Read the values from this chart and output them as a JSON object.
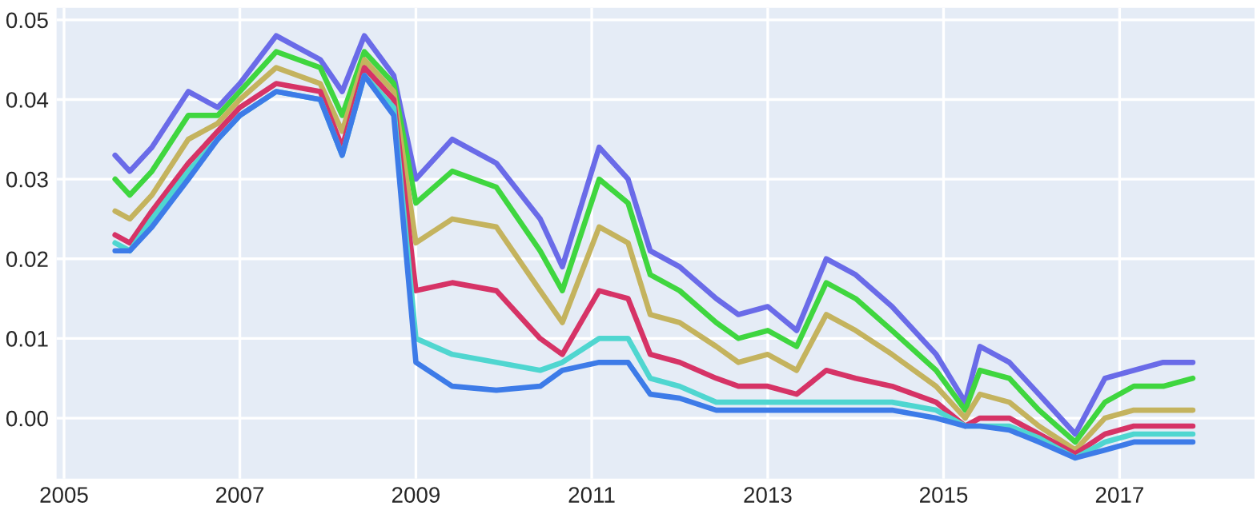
{
  "chart_data": {
    "type": "line",
    "x": [
      "2005-08-01",
      "2005-10-01",
      "2006-01-01",
      "2006-06-01",
      "2006-10-01",
      "2007-01-01",
      "2007-06-01",
      "2007-12-01",
      "2008-03-01",
      "2008-06-01",
      "2008-10-01",
      "2009-01-01",
      "2009-06-01",
      "2009-12-01",
      "2010-06-01",
      "2010-09-01",
      "2011-02-01",
      "2011-06-01",
      "2011-09-01",
      "2012-01-01",
      "2012-06-01",
      "2012-09-01",
      "2013-01-01",
      "2013-05-01",
      "2013-09-01",
      "2014-01-01",
      "2014-06-01",
      "2014-12-01",
      "2015-04-01",
      "2015-06-01",
      "2015-10-01",
      "2016-02-01",
      "2016-07-01",
      "2016-11-01",
      "2017-03-01",
      "2017-07-01",
      "2017-11-01"
    ],
    "series": [
      {
        "color": "#6a6be8",
        "values": [
          0.033,
          0.031,
          0.034,
          0.041,
          0.039,
          0.042,
          0.048,
          0.045,
          0.041,
          0.048,
          0.043,
          0.03,
          0.035,
          0.032,
          0.025,
          0.019,
          0.034,
          0.03,
          0.021,
          0.019,
          0.015,
          0.013,
          0.014,
          0.011,
          0.02,
          0.018,
          0.014,
          0.008,
          0.002,
          0.009,
          0.007,
          0.003,
          -0.002,
          0.005,
          0.006,
          0.007,
          0.007
        ]
      },
      {
        "color": "#3fd63f",
        "values": [
          0.03,
          0.028,
          0.031,
          0.038,
          0.038,
          0.041,
          0.046,
          0.044,
          0.038,
          0.046,
          0.042,
          0.027,
          0.031,
          0.029,
          0.021,
          0.016,
          0.03,
          0.027,
          0.018,
          0.016,
          0.012,
          0.01,
          0.011,
          0.009,
          0.017,
          0.015,
          0.011,
          0.006,
          0.001,
          0.006,
          0.005,
          0.001,
          -0.003,
          0.002,
          0.004,
          0.004,
          0.005
        ]
      },
      {
        "color": "#c4b35e",
        "values": [
          0.026,
          0.025,
          0.028,
          0.035,
          0.037,
          0.04,
          0.044,
          0.042,
          0.036,
          0.045,
          0.041,
          0.022,
          0.025,
          0.024,
          0.016,
          0.012,
          0.024,
          0.022,
          0.013,
          0.012,
          0.009,
          0.007,
          0.008,
          0.006,
          0.013,
          0.011,
          0.008,
          0.004,
          0.0,
          0.003,
          0.002,
          -0.001,
          -0.004,
          0.0,
          0.001,
          0.001,
          0.001
        ]
      },
      {
        "color": "#d63366",
        "values": [
          0.023,
          0.022,
          0.026,
          0.032,
          0.036,
          0.039,
          0.042,
          0.041,
          0.034,
          0.044,
          0.04,
          0.016,
          0.017,
          0.016,
          0.01,
          0.008,
          0.016,
          0.015,
          0.008,
          0.007,
          0.005,
          0.004,
          0.004,
          0.003,
          0.006,
          0.005,
          0.004,
          0.002,
          -0.001,
          0.0,
          0.0,
          -0.002,
          -0.0045,
          -0.002,
          -0.001,
          -0.001,
          -0.001
        ]
      },
      {
        "color": "#4fd6d0",
        "values": [
          0.022,
          0.021,
          0.025,
          0.031,
          0.035,
          0.038,
          0.041,
          0.04,
          0.033,
          0.043,
          0.039,
          0.01,
          0.008,
          0.007,
          0.006,
          0.007,
          0.01,
          0.01,
          0.005,
          0.004,
          0.002,
          0.002,
          0.002,
          0.002,
          0.002,
          0.002,
          0.002,
          0.001,
          -0.001,
          -0.001,
          -0.001,
          -0.0025,
          -0.005,
          -0.003,
          -0.002,
          -0.002,
          -0.002
        ]
      },
      {
        "color": "#3d7be8",
        "values": [
          0.021,
          0.021,
          0.024,
          0.03,
          0.035,
          0.038,
          0.041,
          0.04,
          0.033,
          0.043,
          0.038,
          0.007,
          0.004,
          0.0035,
          0.004,
          0.006,
          0.007,
          0.007,
          0.003,
          0.0025,
          0.001,
          0.001,
          0.001,
          0.001,
          0.001,
          0.001,
          0.001,
          0.0,
          -0.001,
          -0.001,
          -0.0015,
          -0.003,
          -0.005,
          -0.004,
          -0.003,
          -0.003,
          -0.003
        ]
      }
    ],
    "xlim": [
      "2004-12-01",
      "2018-07-15"
    ],
    "xticks": [
      {
        "value": "2005-01-01",
        "label": "2005"
      },
      {
        "value": "2007-01-01",
        "label": "2007"
      },
      {
        "value": "2009-01-01",
        "label": "2009"
      },
      {
        "value": "2011-01-01",
        "label": "2011"
      },
      {
        "value": "2013-01-01",
        "label": "2013"
      },
      {
        "value": "2015-01-01",
        "label": "2015"
      },
      {
        "value": "2017-01-01",
        "label": "2017"
      }
    ],
    "ylim": [
      -0.0076,
      0.0515
    ],
    "yticks": [
      {
        "value": 0,
        "label": "0.00"
      },
      {
        "value": 0.01,
        "label": "0.01"
      },
      {
        "value": 0.02,
        "label": "0.02"
      },
      {
        "value": 0.03,
        "label": "0.03"
      },
      {
        "value": 0.04,
        "label": "0.04"
      },
      {
        "value": 0.05,
        "label": "0.05"
      }
    ],
    "grid": true
  }
}
